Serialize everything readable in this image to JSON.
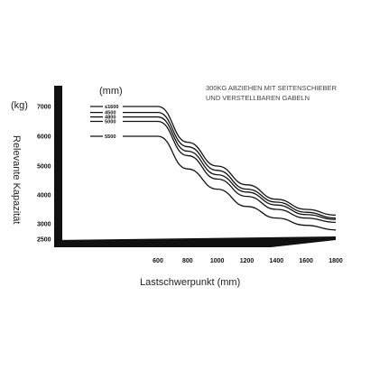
{
  "chart_data": {
    "type": "line",
    "note_lines": [
      "300KG ABZIEHEN MIT SEITENSCHIEBER",
      "UND VERSTELLBAREN GABELN"
    ],
    "ylabel": "Relevante Kapazität",
    "yunit": "(kg)",
    "xunit": "(mm)",
    "xlabel": "Lastschwerpunkt (mm)",
    "xticks": [
      600,
      800,
      1000,
      1200,
      1400,
      1600,
      1800
    ],
    "yticks": [
      2500,
      3000,
      4000,
      5000,
      6000,
      7000
    ],
    "xlim": [
      600,
      1800
    ],
    "ylim": [
      2500,
      7000
    ],
    "series": [
      {
        "name": "≤1600",
        "x": [
          600,
          800,
          1000,
          1200,
          1400,
          1600,
          1800
        ],
        "values": [
          7000,
          5800,
          5000,
          4350,
          3850,
          3500,
          3300
        ]
      },
      {
        "name": "4500",
        "x": [
          600,
          800,
          1000,
          1200,
          1400,
          1600,
          1800
        ],
        "values": [
          6800,
          5650,
          4850,
          4200,
          3750,
          3400,
          3200
        ]
      },
      {
        "name": "4800",
        "x": [
          600,
          800,
          1000,
          1200,
          1400,
          1600,
          1800
        ],
        "values": [
          6650,
          5500,
          4700,
          4100,
          3650,
          3320,
          3150
        ]
      },
      {
        "name": "5000",
        "x": [
          600,
          800,
          1000,
          1200,
          1400,
          1600,
          1800
        ],
        "values": [
          6500,
          5350,
          4550,
          3950,
          3500,
          3200,
          3050
        ]
      },
      {
        "name": "5500",
        "x": [
          600,
          800,
          1000,
          1200,
          1400,
          1600,
          1800
        ],
        "values": [
          6000,
          4900,
          4200,
          3600,
          3200,
          2950,
          2800
        ]
      }
    ]
  }
}
